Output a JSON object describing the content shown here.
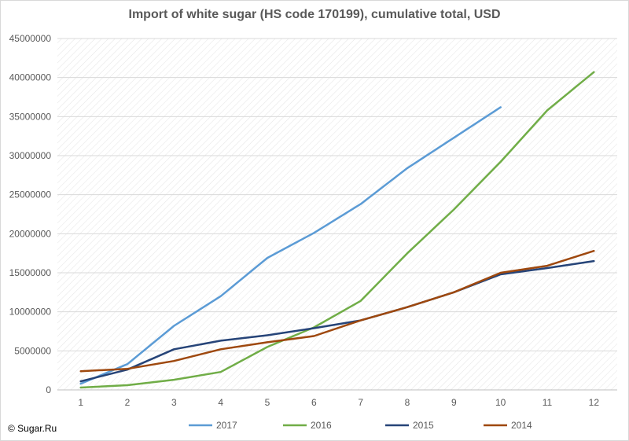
{
  "chart_data": {
    "type": "line",
    "title": "Import of white sugar (HS code 170199), cumulative total, USD",
    "xlabel": "",
    "ylabel": "",
    "x": [
      1,
      2,
      3,
      4,
      5,
      6,
      7,
      8,
      9,
      10,
      11,
      12
    ],
    "ylim": [
      0,
      45000000
    ],
    "yticks": [
      0,
      5000000,
      10000000,
      15000000,
      20000000,
      25000000,
      30000000,
      35000000,
      40000000,
      45000000
    ],
    "grid": true,
    "legend_position": "bottom",
    "series": [
      {
        "name": "2017",
        "color": "#5b9bd5",
        "values": [
          800000,
          3300000,
          8200000,
          12000000,
          16900000,
          20100000,
          23800000,
          28400000,
          32300000,
          36200000,
          null,
          null
        ]
      },
      {
        "name": "2016",
        "color": "#70ad47",
        "values": [
          300000,
          600000,
          1300000,
          2300000,
          5500000,
          8000000,
          11400000,
          17500000,
          23100000,
          29200000,
          35800000,
          40700000
        ]
      },
      {
        "name": "2015",
        "color": "#264478",
        "values": [
          1100000,
          2600000,
          5200000,
          6300000,
          7000000,
          7900000,
          8900000,
          10600000,
          12500000,
          14800000,
          15600000,
          16500000
        ]
      },
      {
        "name": "2014",
        "color": "#9e480e",
        "values": [
          2400000,
          2700000,
          3700000,
          5200000,
          6100000,
          6900000,
          8900000,
          10600000,
          12500000,
          15000000,
          15900000,
          17800000
        ]
      }
    ]
  },
  "footer": {
    "copyright": "© Sugar.Ru"
  }
}
